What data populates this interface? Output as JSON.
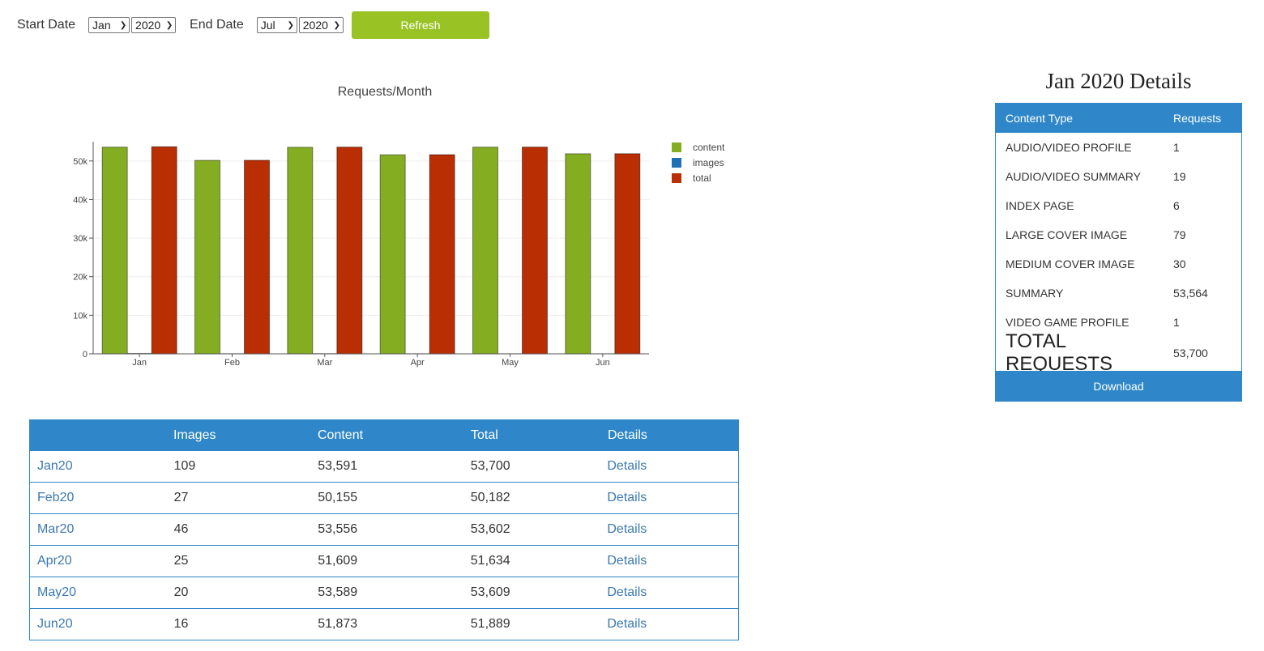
{
  "controls": {
    "start_label": "Start Date",
    "start_month": "Jan",
    "start_year": "2020",
    "end_label": "End Date",
    "end_month": "Jul",
    "end_year": "2020",
    "refresh_label": "Refresh"
  },
  "chart_data": {
    "type": "bar",
    "title": "Requests/Month",
    "categories": [
      "Jan",
      "Feb",
      "Mar",
      "Apr",
      "May",
      "Jun"
    ],
    "series": [
      {
        "name": "content",
        "color": "#84ad21",
        "values": [
          53591,
          50155,
          53556,
          51609,
          53589,
          51873
        ]
      },
      {
        "name": "images",
        "color": "#1f6fb5",
        "values": [
          109,
          27,
          46,
          25,
          20,
          16
        ]
      },
      {
        "name": "total",
        "color": "#b92e02",
        "values": [
          53700,
          50182,
          53602,
          51634,
          53609,
          51889
        ]
      }
    ],
    "y_ticks": [
      "0",
      "10k",
      "20k",
      "30k",
      "40k",
      "50k"
    ],
    "ylim": [
      0,
      55000
    ],
    "grid": true,
    "legend": "right"
  },
  "table": {
    "headers": [
      "",
      "Images",
      "Content",
      "Total",
      "Details"
    ],
    "rows": [
      {
        "month": "Jan20",
        "images": "109",
        "content": "53,591",
        "total": "53,700",
        "details": "Details"
      },
      {
        "month": "Feb20",
        "images": "27",
        "content": "50,155",
        "total": "50,182",
        "details": "Details"
      },
      {
        "month": "Mar20",
        "images": "46",
        "content": "53,556",
        "total": "53,602",
        "details": "Details"
      },
      {
        "month": "Apr20",
        "images": "25",
        "content": "51,609",
        "total": "51,634",
        "details": "Details"
      },
      {
        "month": "May20",
        "images": "20",
        "content": "53,589",
        "total": "53,609",
        "details": "Details"
      },
      {
        "month": "Jun20",
        "images": "16",
        "content": "51,873",
        "total": "51,889",
        "details": "Details"
      }
    ]
  },
  "details": {
    "title": "Jan 2020 Details",
    "col_type": "Content Type",
    "col_requests": "Requests",
    "rows": [
      {
        "type": "AUDIO/VIDEO PROFILE",
        "requests": "1"
      },
      {
        "type": "AUDIO/VIDEO SUMMARY",
        "requests": "19"
      },
      {
        "type": "INDEX PAGE",
        "requests": "6"
      },
      {
        "type": "LARGE COVER IMAGE",
        "requests": "79"
      },
      {
        "type": "MEDIUM COVER IMAGE",
        "requests": "30"
      },
      {
        "type": "SUMMARY",
        "requests": "53,564"
      },
      {
        "type": "VIDEO GAME PROFILE",
        "requests": "1"
      }
    ],
    "total_label": "TOTAL REQUESTS",
    "total_value": "53,700",
    "download_label": "Download"
  }
}
